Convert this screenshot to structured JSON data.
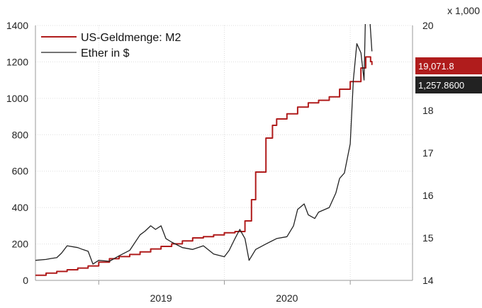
{
  "chart_data": {
    "type": "line",
    "title": "",
    "xlabel": "",
    "y_left": {
      "label": "",
      "ylim": [
        0,
        1400
      ],
      "ticks": [
        "0",
        "200",
        "400",
        "600",
        "800",
        "1000",
        "1200",
        "1400"
      ]
    },
    "y_right": {
      "label": "",
      "multiplier_label": "x 1,000",
      "ylim": [
        14,
        20
      ],
      "ticks": [
        "14",
        "15",
        "16",
        "17",
        "18",
        "19",
        "20"
      ]
    },
    "x_ticks": [
      "2019",
      "2020"
    ],
    "x_range": [
      "2018-07-01",
      "2021-07-01"
    ],
    "grid": true,
    "legend_position": "top-left",
    "colors": {
      "m2": "#b01c1c",
      "ether": "#222222",
      "grid": "#dddddd",
      "axis": "#999999",
      "plot_bg": "#ffffff"
    },
    "series": [
      {
        "name": "US-Geldmenge: M2",
        "axis": "right",
        "color": "#b01c1c",
        "last_label": "19,071.8",
        "x": [
          "2018-07-01",
          "2018-08-01",
          "2018-09-01",
          "2018-10-01",
          "2018-11-01",
          "2018-12-01",
          "2019-01-01",
          "2019-02-01",
          "2019-03-01",
          "2019-04-01",
          "2019-05-01",
          "2019-06-01",
          "2019-07-01",
          "2019-08-01",
          "2019-09-01",
          "2019-10-01",
          "2019-11-01",
          "2019-12-01",
          "2020-01-01",
          "2020-02-01",
          "2020-03-01",
          "2020-03-20",
          "2020-04-01",
          "2020-05-01",
          "2020-05-20",
          "2020-06-01",
          "2020-07-01",
          "2020-08-01",
          "2020-09-01",
          "2020-10-01",
          "2020-11-01",
          "2020-12-01",
          "2021-01-01",
          "2021-02-01",
          "2021-02-15",
          "2021-03-01",
          "2021-03-05"
        ],
        "y": [
          14.12,
          14.17,
          14.21,
          14.25,
          14.29,
          14.34,
          14.43,
          14.51,
          14.56,
          14.61,
          14.67,
          14.74,
          14.8,
          14.86,
          14.93,
          15.0,
          15.03,
          15.07,
          15.12,
          15.15,
          15.4,
          15.9,
          16.55,
          17.35,
          17.65,
          17.8,
          17.92,
          18.08,
          18.18,
          18.24,
          18.32,
          18.5,
          18.68,
          19.0,
          19.26,
          19.15,
          19.07
        ]
      },
      {
        "name": "Ether in $",
        "axis": "left",
        "color": "#222222",
        "last_label": "1,257.8600",
        "x": [
          "2018-07-01",
          "2018-08-01",
          "2018-08-15",
          "2018-09-01",
          "2018-09-15",
          "2018-10-01",
          "2018-11-01",
          "2018-11-15",
          "2018-12-01",
          "2018-12-15",
          "2019-01-01",
          "2019-02-01",
          "2019-03-01",
          "2019-04-01",
          "2019-05-01",
          "2019-05-15",
          "2019-06-01",
          "2019-06-15",
          "2019-07-01",
          "2019-07-15",
          "2019-08-01",
          "2019-09-01",
          "2019-10-01",
          "2019-11-01",
          "2019-12-01",
          "2020-01-01",
          "2020-01-15",
          "2020-02-01",
          "2020-02-15",
          "2020-03-01",
          "2020-03-13",
          "2020-04-01",
          "2020-05-01",
          "2020-06-01",
          "2020-07-01",
          "2020-07-20",
          "2020-08-01",
          "2020-08-20",
          "2020-09-01",
          "2020-09-20",
          "2020-10-01",
          "2020-11-01",
          "2020-11-20",
          "2020-12-01",
          "2020-12-15",
          "2021-01-01",
          "2021-01-10",
          "2021-01-20",
          "2021-02-01",
          "2021-02-10",
          "2021-02-20",
          "2021-02-28",
          "2021-03-05"
        ],
        "y": [
          110,
          115,
          120,
          125,
          150,
          190,
          180,
          170,
          160,
          90,
          110,
          105,
          135,
          165,
          250,
          270,
          300,
          280,
          300,
          230,
          210,
          180,
          170,
          190,
          145,
          130,
          165,
          230,
          280,
          230,
          110,
          170,
          200,
          230,
          240,
          300,
          390,
          420,
          360,
          340,
          375,
          400,
          480,
          560,
          590,
          750,
          1100,
          1300,
          1250,
          1100,
          1950,
          1400,
          1258
        ]
      }
    ]
  }
}
